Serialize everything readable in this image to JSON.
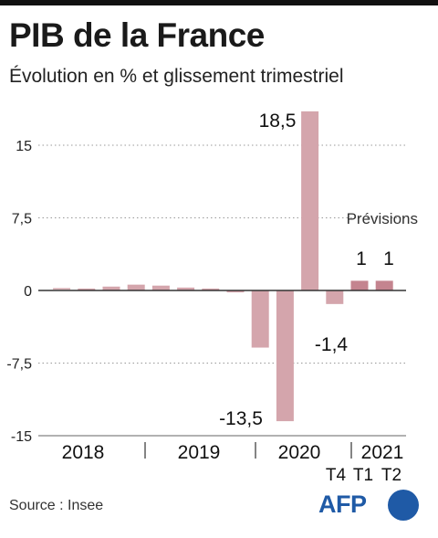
{
  "header": {
    "title": "PIB de la France",
    "subtitle": "Évolution en % et glissement trimestriel"
  },
  "footer": {
    "source": "Source : Insee",
    "logo_text": "AFP"
  },
  "colors": {
    "bar": "#d4a5ac",
    "forecast_bar": "#c4848f",
    "axis": "#333333",
    "grid": "#999999",
    "logo": "#1f5aa6"
  },
  "chart_data": {
    "type": "bar",
    "title": "PIB de la France",
    "subtitle": "Évolution en % et glissement trimestriel",
    "ylim": [
      -15,
      18.5
    ],
    "y_ticks": [
      15,
      7.5,
      0,
      -7.5,
      -15
    ],
    "y_tick_labels": [
      "15",
      "7,5",
      "0",
      "-7,5",
      "-15"
    ],
    "grid": "horizontal dotted",
    "year_labels": [
      "2018",
      "2019",
      "2020",
      "2021"
    ],
    "quarter_labels": [
      "T4",
      "T1",
      "T2"
    ],
    "forecast_label": "Prévisions",
    "categories": [
      "2018 T1",
      "2018 T2",
      "2018 T3",
      "2018 T4",
      "2019 T1",
      "2019 T2",
      "2019 T3",
      "2019 T4",
      "2020 T1",
      "2020 T2",
      "2020 T3",
      "2020 T4",
      "2021 T1",
      "2021 T2"
    ],
    "values": [
      0.1,
      0.2,
      0.4,
      0.6,
      0.5,
      0.3,
      0.2,
      -0.2,
      -5.9,
      -13.5,
      18.5,
      -1.4,
      1,
      1
    ],
    "forecast": [
      false,
      false,
      false,
      false,
      false,
      false,
      false,
      false,
      false,
      false,
      false,
      false,
      true,
      true
    ],
    "data_labels": [
      {
        "index": 9,
        "text": "-13,5"
      },
      {
        "index": 10,
        "text": "18,5"
      },
      {
        "index": 11,
        "text": "-1,4"
      },
      {
        "index": 12,
        "text": "1"
      },
      {
        "index": 13,
        "text": "1"
      }
    ]
  }
}
